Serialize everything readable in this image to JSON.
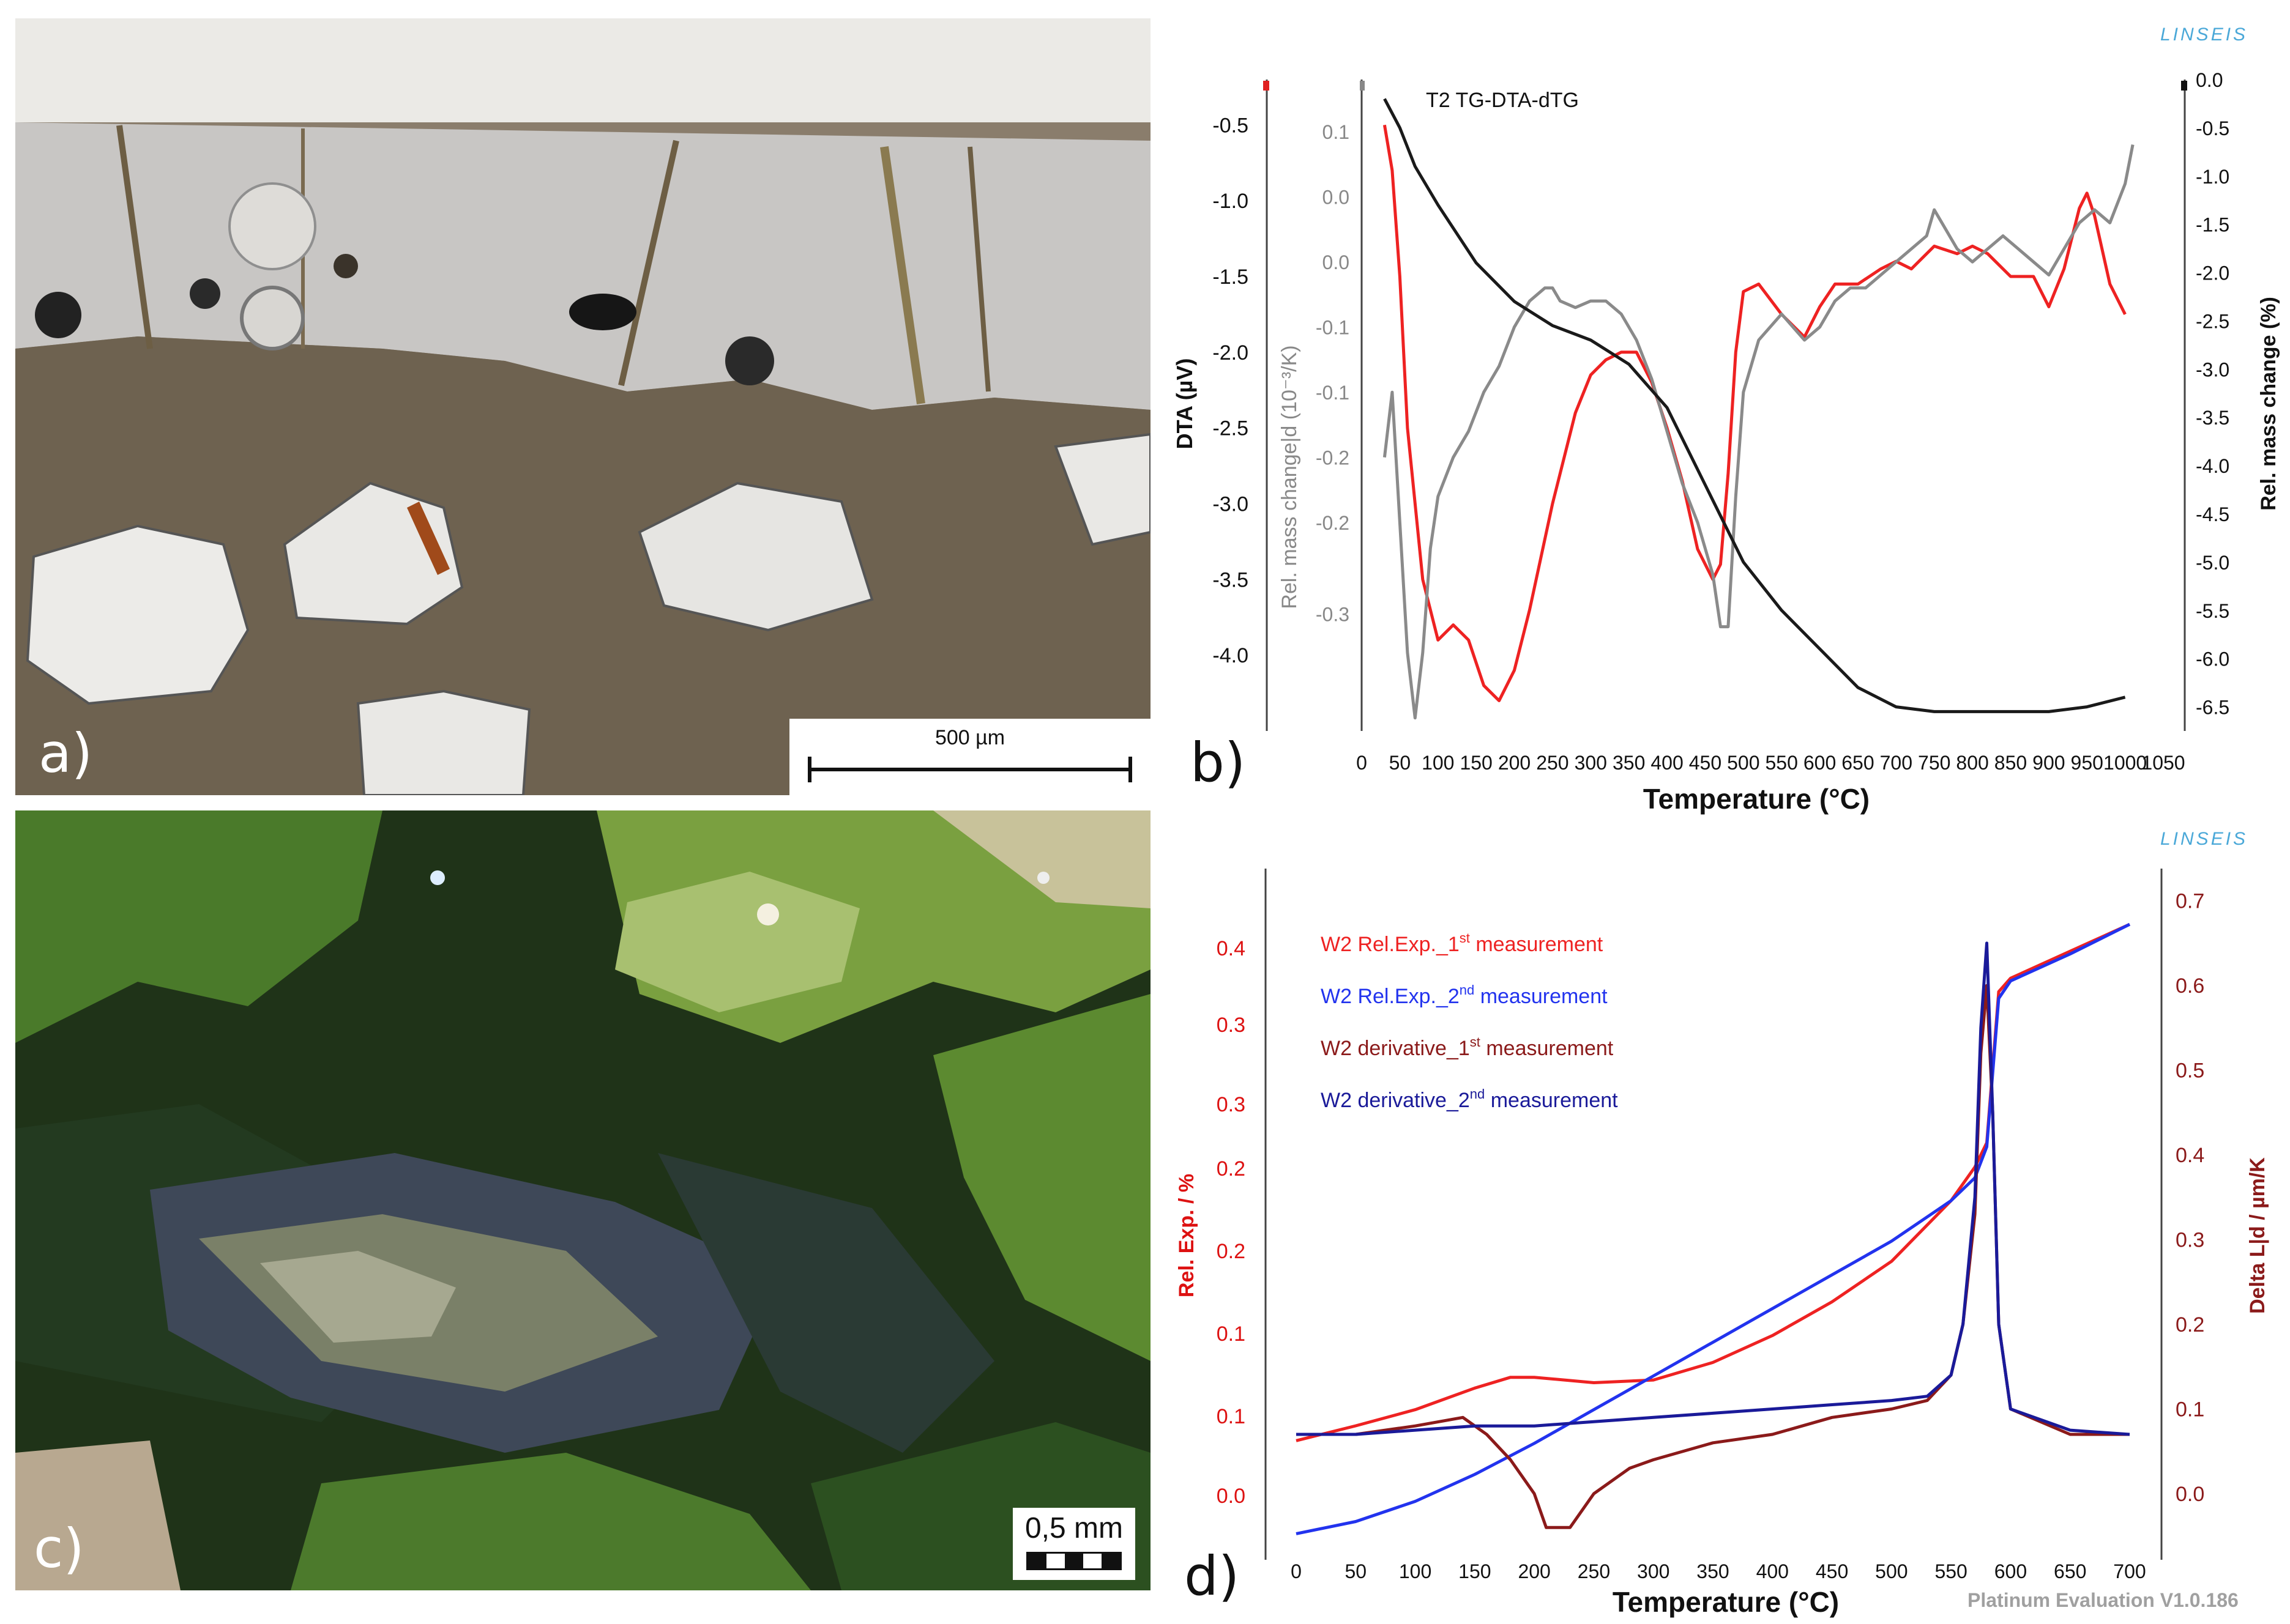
{
  "panels": {
    "a": {
      "letter": "a)",
      "scale_bar": "500 µm"
    },
    "b": {
      "letter": "b)"
    },
    "c": {
      "letter": "c)",
      "scale_bar": "0,5 mm"
    },
    "d": {
      "letter": "d)"
    }
  },
  "branding": {
    "logo_b": "LINSEIS",
    "logo_d": "LINSEIS",
    "footer": "Platinum Evaluation V1.0.186"
  },
  "colors": {
    "red": "#ee2222",
    "gray": "#8a8a8a",
    "black": "#1a1a1a",
    "blue": "#2233ee",
    "darkred": "#8b1a1a",
    "navy": "#1a1a99"
  },
  "chart_data": [
    {
      "type": "line",
      "panel": "b",
      "title": "T2  TG-DTA-dTG",
      "xlabel": "Temperature (°C)",
      "xticks": [
        "0",
        "50",
        "100",
        "150",
        "200",
        "250",
        "300",
        "350",
        "400",
        "450",
        "500",
        "550",
        "600",
        "650",
        "700",
        "750",
        "800",
        "850",
        "900",
        "950",
        "1000",
        "1050"
      ],
      "xlim": [
        0,
        1050
      ],
      "y_left_label": "DTA (µV)",
      "y_left_ticks": [
        "-0.5",
        "-1.0",
        "-1.5",
        "-2.0",
        "-2.5",
        "-3.0",
        "-3.5",
        "-4.0"
      ],
      "y_left_lim": [
        -4.5,
        -0.2
      ],
      "y_mid_label": "Rel. mass change|d (10⁻³/K)",
      "y_mid_ticks": [
        "0.1",
        "0.0",
        "0.0",
        "-0.1",
        "-0.1",
        "-0.2",
        "-0.2",
        "-0.3"
      ],
      "y_mid_lim": [
        -0.36,
        0.14
      ],
      "y_right_label": "Rel. mass change (%)",
      "y_right_ticks": [
        "0.0",
        "-0.5",
        "-1.0",
        "-1.5",
        "-2.0",
        "-2.5",
        "-3.0",
        "-3.5",
        "-4.0",
        "-4.5",
        "-5.0",
        "-5.5",
        "-6.0",
        "-6.5"
      ],
      "y_right_lim": [
        -6.75,
        0
      ],
      "series": [
        {
          "color": "red",
          "axis": "left",
          "x": [
            30,
            40,
            50,
            60,
            80,
            100,
            120,
            140,
            160,
            180,
            200,
            220,
            250,
            280,
            300,
            320,
            340,
            360,
            380,
            400,
            420,
            440,
            460,
            470,
            480,
            490,
            500,
            520,
            550,
            580,
            600,
            620,
            650,
            680,
            700,
            720,
            750,
            780,
            800,
            820,
            850,
            880,
            900,
            920,
            940,
            950,
            960,
            980,
            1000
          ],
          "y": [
            -0.5,
            -0.8,
            -1.5,
            -2.5,
            -3.5,
            -3.9,
            -3.8,
            -3.9,
            -4.2,
            -4.3,
            -4.1,
            -3.7,
            -3.0,
            -2.4,
            -2.15,
            -2.05,
            -2.0,
            -2.0,
            -2.2,
            -2.5,
            -2.85,
            -3.3,
            -3.5,
            -3.4,
            -2.8,
            -2.0,
            -1.6,
            -1.55,
            -1.75,
            -1.9,
            -1.7,
            -1.55,
            -1.55,
            -1.45,
            -1.4,
            -1.45,
            -1.3,
            -1.35,
            -1.3,
            -1.35,
            -1.5,
            -1.5,
            -1.7,
            -1.45,
            -1.05,
            -0.95,
            -1.1,
            -1.55,
            -1.75
          ]
        },
        {
          "color": "gray",
          "axis": "mid",
          "x": [
            30,
            40,
            50,
            60,
            70,
            80,
            90,
            100,
            120,
            140,
            160,
            180,
            200,
            220,
            240,
            250,
            260,
            280,
            300,
            320,
            340,
            360,
            380,
            400,
            420,
            440,
            460,
            470,
            480,
            490,
            500,
            520,
            550,
            580,
            600,
            620,
            640,
            660,
            680,
            700,
            720,
            740,
            750,
            760,
            780,
            800,
            820,
            840,
            860,
            880,
            900,
            920,
            940,
            960,
            980,
            1000,
            1010
          ],
          "y": [
            -0.15,
            -0.1,
            -0.2,
            -0.3,
            -0.35,
            -0.3,
            -0.22,
            -0.18,
            -0.15,
            -0.13,
            -0.1,
            -0.08,
            -0.05,
            -0.03,
            -0.02,
            -0.02,
            -0.03,
            -0.035,
            -0.03,
            -0.03,
            -0.04,
            -0.06,
            -0.09,
            -0.13,
            -0.17,
            -0.2,
            -0.24,
            -0.28,
            -0.28,
            -0.18,
            -0.1,
            -0.06,
            -0.04,
            -0.06,
            -0.05,
            -0.03,
            -0.02,
            -0.02,
            -0.01,
            0.0,
            0.01,
            0.02,
            0.04,
            0.03,
            0.01,
            0.0,
            0.01,
            0.02,
            0.01,
            0.0,
            -0.01,
            0.01,
            0.03,
            0.04,
            0.03,
            0.06,
            0.09
          ]
        },
        {
          "color": "black",
          "axis": "right",
          "x": [
            30,
            50,
            70,
            100,
            150,
            200,
            250,
            300,
            350,
            400,
            450,
            500,
            550,
            600,
            650,
            700,
            750,
            800,
            850,
            900,
            950,
            1000
          ],
          "y": [
            -0.2,
            -0.5,
            -0.9,
            -1.3,
            -1.9,
            -2.3,
            -2.55,
            -2.7,
            -2.95,
            -3.4,
            -4.2,
            -5.0,
            -5.5,
            -5.9,
            -6.3,
            -6.5,
            -6.55,
            -6.55,
            -6.55,
            -6.55,
            -6.5,
            -6.4
          ]
        }
      ]
    },
    {
      "type": "line",
      "panel": "d",
      "xlabel": "Temperature (°C)",
      "xticks": [
        "0",
        "50",
        "100",
        "150",
        "200",
        "250",
        "300",
        "350",
        "400",
        "450",
        "500",
        "550",
        "600",
        "650",
        "700"
      ],
      "xlim": [
        0,
        700
      ],
      "y_left_label": "Rel. Exp. / %",
      "y_left_ticks": [
        "0.0",
        "0.1",
        "0.1",
        "0.2",
        "0.2",
        "0.3",
        "0.3",
        "0.4"
      ],
      "y_left_lim": [
        -0.02,
        0.47
      ],
      "y_right_label": "Delta L|d / µm/K",
      "y_right_ticks": [
        "0.0",
        "0.1",
        "0.2",
        "0.3",
        "0.4",
        "0.5",
        "0.6",
        "0.7"
      ],
      "y_right_lim": [
        -0.06,
        0.72
      ],
      "legend": [
        {
          "base": "W2 Rel.Exp._1",
          "sup": "st",
          "rest": " measurement",
          "color": "red"
        },
        {
          "base": "W2 Rel.Exp._2",
          "sup": "nd",
          "rest": " measurement",
          "color": "blue"
        },
        {
          "base": "W2 derivative_1",
          "sup": "st",
          "rest": " measurement",
          "color": "darkred"
        },
        {
          "base": "W2 derivative_2",
          "sup": "nd",
          "rest": " measurement",
          "color": "navy"
        }
      ],
      "series": [
        {
          "color": "red",
          "axis": "left",
          "x": [
            0,
            50,
            100,
            150,
            180,
            200,
            250,
            300,
            350,
            400,
            450,
            500,
            550,
            570,
            580,
            590,
            600,
            650,
            700
          ],
          "y": [
            0.057,
            0.068,
            0.08,
            0.096,
            0.104,
            0.104,
            0.1,
            0.102,
            0.115,
            0.135,
            0.16,
            0.19,
            0.235,
            0.26,
            0.278,
            0.39,
            0.4,
            0.42,
            0.44
          ]
        },
        {
          "color": "blue",
          "axis": "left",
          "x": [
            0,
            50,
            100,
            150,
            200,
            250,
            300,
            350,
            400,
            450,
            500,
            550,
            570,
            580,
            590,
            600,
            650,
            700
          ],
          "y": [
            -0.012,
            -0.003,
            0.012,
            0.032,
            0.055,
            0.08,
            0.105,
            0.13,
            0.155,
            0.18,
            0.205,
            0.235,
            0.252,
            0.275,
            0.385,
            0.398,
            0.418,
            0.44
          ]
        },
        {
          "color": "darkred",
          "axis": "right",
          "x": [
            0,
            50,
            100,
            140,
            160,
            180,
            200,
            210,
            230,
            250,
            280,
            300,
            350,
            400,
            450,
            500,
            530,
            550,
            560,
            570,
            575,
            580,
            585,
            590,
            600,
            650,
            700
          ],
          "y": [
            0.07,
            0.07,
            0.08,
            0.09,
            0.07,
            0.04,
            0.0,
            -0.04,
            -0.04,
            0.0,
            0.03,
            0.04,
            0.06,
            0.07,
            0.09,
            0.1,
            0.11,
            0.14,
            0.2,
            0.33,
            0.52,
            0.6,
            0.45,
            0.2,
            0.1,
            0.07,
            0.07
          ]
        },
        {
          "color": "navy",
          "axis": "right",
          "x": [
            0,
            50,
            100,
            150,
            200,
            250,
            300,
            350,
            400,
            450,
            500,
            530,
            550,
            560,
            570,
            575,
            580,
            585,
            590,
            600,
            650,
            700
          ],
          "y": [
            0.07,
            0.07,
            0.075,
            0.08,
            0.08,
            0.085,
            0.09,
            0.095,
            0.1,
            0.105,
            0.11,
            0.115,
            0.14,
            0.2,
            0.35,
            0.55,
            0.65,
            0.45,
            0.2,
            0.1,
            0.075,
            0.07
          ]
        }
      ]
    }
  ]
}
